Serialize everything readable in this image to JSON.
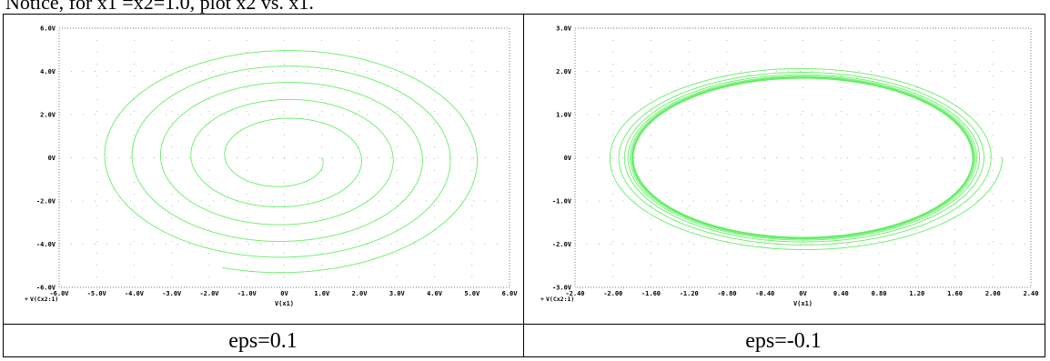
{
  "intro_text": "Notice, for x1 =x2=1.0, plot x2 vs. x1.",
  "panels": [
    {
      "caption": "eps=0.1",
      "chart_data": {
        "type": "line",
        "xlabel": "V(x1)",
        "legend": "V(Cx2:1)",
        "xlim": [
          -6,
          6
        ],
        "ylim": [
          -6,
          6
        ],
        "xticks": [
          "-6.0V",
          "-5.0V",
          "-4.0V",
          "-3.0V",
          "-2.0V",
          "-1.0V",
          "0V",
          "1.0V",
          "2.0V",
          "3.0V",
          "4.0V",
          "5.0V",
          "6.0V"
        ],
        "yticks": [
          "6.0V",
          "4.0V",
          "2.0V",
          "0V",
          "-2.0V",
          "-4.0V",
          "-6.0V"
        ],
        "series_color": "#66ee66",
        "spiral": {
          "start_radius": 1.0,
          "end_radius": 5.35,
          "y_scale": 1.0,
          "turns": 5.3,
          "direction": "outward"
        }
      }
    },
    {
      "caption": "eps=-0.1",
      "chart_data": {
        "type": "line",
        "xlabel": "V(x1)",
        "legend": "V(Cx2:1)",
        "xlim": [
          -2.4,
          2.4
        ],
        "ylim": [
          -3,
          3
        ],
        "xticks": [
          "-2.40",
          "-2.00",
          "-1.60",
          "-1.20",
          "-0.80",
          "-0.40",
          "0V",
          "0.40",
          "0.80",
          "1.20",
          "1.60",
          "2.00",
          "2.40"
        ],
        "yticks": [
          "3.0V",
          "2.0V",
          "1.0V",
          "0V",
          "-1.0V",
          "-2.0V",
          "-3.0V"
        ],
        "series_color": "#66ee66",
        "spiral": {
          "start_radius": 2.1,
          "end_radius": 1.78,
          "y_scale": 1.03,
          "turns": 9,
          "direction": "inward"
        }
      }
    }
  ]
}
